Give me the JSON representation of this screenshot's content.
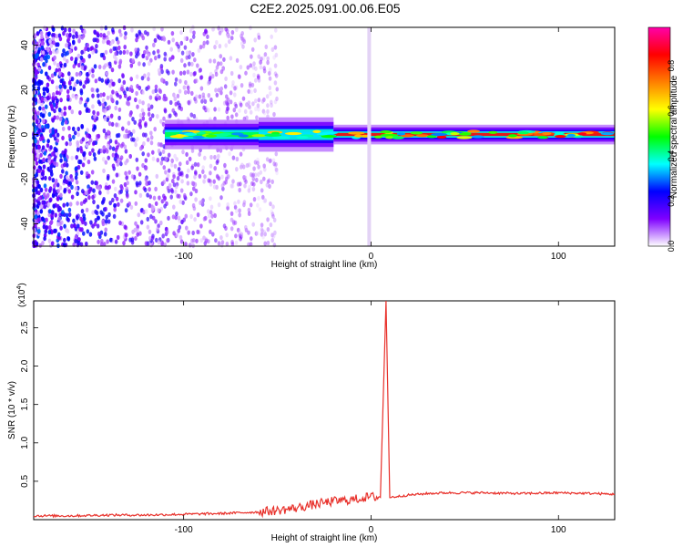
{
  "title": "C2E2.2025.091.00.06.E05",
  "chart_data": [
    {
      "type": "heatmap",
      "xlabel": "Height of straight line (km)",
      "ylabel": "Frequency (Hz)",
      "xlim": [
        -180,
        130
      ],
      "ylim": [
        -50,
        48
      ],
      "xticks": [
        -100,
        0,
        100
      ],
      "yticks": [
        -40,
        -20,
        0,
        20,
        40
      ],
      "colorbar": {
        "label": "Normalized spectral amplitude",
        "range": [
          0,
          0.97
        ],
        "ticks": [
          0.0,
          0.2,
          0.4,
          0.6,
          0.8
        ],
        "tick_labels": [
          "0.0",
          "0.2",
          "0.4",
          "0.6",
          "0.8"
        ],
        "colors": [
          "#ffffff",
          "#7f00ff",
          "#0000ff",
          "#00ffff",
          "#00ff00",
          "#ffff00",
          "#ff7f00",
          "#ff0000",
          "#ff00aa"
        ]
      },
      "band": {
        "center_hz": 0,
        "noise_region_km": [
          -180,
          -60
        ],
        "band_start_km": -110,
        "band_segments": [
          {
            "x": [
              -110,
              -60
            ],
            "halfwidth_hz": 3,
            "peak": 0.45
          },
          {
            "x": [
              -60,
              -20
            ],
            "halfwidth_hz": 3.5,
            "peak": 0.35
          },
          {
            "x": [
              -20,
              130
            ],
            "halfwidth_hz": 2,
            "peak": 0.85
          }
        ],
        "vertical_line_km": -1
      }
    },
    {
      "type": "line",
      "xlabel": "Height of straight line (km)",
      "ylabel": "SNR (10 * v/v)",
      "y_multiplier_label": "(x10",
      "y_multiplier_exp": "4",
      "xlim": [
        -180,
        130
      ],
      "ylim": [
        0.0,
        2.85
      ],
      "xticks": [
        -100,
        0,
        100
      ],
      "yticks": [
        0.5,
        1.0,
        1.5,
        2.0,
        2.5
      ],
      "ytick_labels": [
        "0.5",
        "1.0",
        "1.5",
        "2.0",
        "2.5"
      ],
      "color": "#e8302a",
      "series": [
        {
          "x": [
            -180,
            -160,
            -140,
            -120,
            -100,
            -80,
            -60,
            -50,
            -40,
            -30,
            -20,
            -10,
            0,
            5,
            8,
            10,
            20,
            30,
            40,
            60,
            80,
            100,
            120,
            130
          ],
          "y": [
            0.05,
            0.05,
            0.06,
            0.06,
            0.07,
            0.08,
            0.1,
            0.12,
            0.15,
            0.2,
            0.24,
            0.26,
            0.3,
            0.29,
            2.85,
            0.29,
            0.32,
            0.34,
            0.35,
            0.35,
            0.34,
            0.35,
            0.34,
            0.33
          ]
        }
      ]
    }
  ]
}
